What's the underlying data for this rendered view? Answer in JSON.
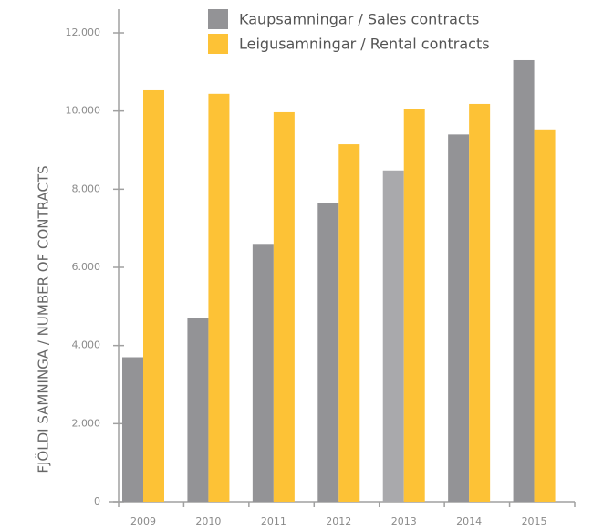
{
  "chart_data": {
    "type": "bar",
    "y_label": "FJÖLDI SAMNINGA / NUMBER OF CONTRACTS",
    "categories": [
      "2009",
      "2010",
      "2011",
      "2012",
      "2013",
      "2014",
      "2015"
    ],
    "series": [
      {
        "name": "Kaupsamningar / Sales contracts",
        "color": "#939396",
        "colors": [
          "#939396",
          "#939396",
          "#939396",
          "#939396",
          "#a9a9ac",
          "#939396",
          "#939396"
        ],
        "values": [
          3700,
          4700,
          6600,
          7650,
          8480,
          9400,
          11300
        ]
      },
      {
        "name": "Leigusamningar / Rental contracts",
        "color": "#fdc236",
        "values": [
          10530,
          10440,
          9970,
          9150,
          10040,
          10180,
          9530
        ]
      }
    ],
    "ylim": [
      0,
      12000
    ],
    "yticks": [
      0,
      {
        "value": 2000,
        "label": "2.000"
      },
      {
        "value": 4000,
        "label": "4.000"
      },
      {
        "value": 6000,
        "label": "6.000"
      },
      {
        "value": 8000,
        "label": "8.000"
      },
      {
        "value": 10000,
        "label": "10.000"
      },
      {
        "value": 12000,
        "label": "12.000"
      }
    ],
    "grid": false,
    "legend": "top"
  }
}
